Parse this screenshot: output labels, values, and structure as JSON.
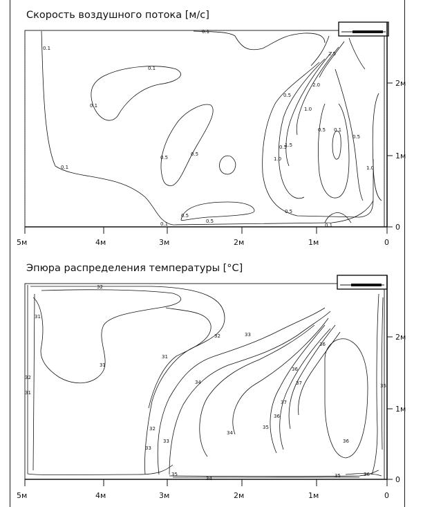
{
  "panels": [
    {
      "title": "Скорость воздушного потока [м/с]",
      "x_ticks": [
        "5м",
        "4м",
        "3м",
        "2м",
        "1м",
        "0"
      ],
      "y_ticks": [
        "2м",
        "1м",
        "0"
      ],
      "contour_labels": [
        "0.1",
        "0.1",
        "0.1",
        "0.1",
        "0.1",
        "0.1",
        "0.1",
        "0.5",
        "0.5",
        "0.5",
        "0.5",
        "0.5",
        "0.5",
        "0.5",
        "1.0",
        "1.0",
        "1.5",
        "2.0",
        "2.5",
        "1.0",
        "0.5",
        "0.1",
        "0.5"
      ]
    },
    {
      "title": "Эпюра распределения температуры [°C]",
      "x_ticks": [
        "5м",
        "4м",
        "3м",
        "2м",
        "1м",
        "0"
      ],
      "y_ticks": [
        "2м",
        "1м",
        "0"
      ],
      "contour_labels": [
        "32",
        "31",
        "32",
        "31",
        "31",
        "31",
        "32",
        "33",
        "34",
        "33",
        "32",
        "33",
        "34",
        "35",
        "36",
        "37",
        "36",
        "36",
        "35",
        "35",
        "36",
        "34",
        "36",
        "37",
        "35"
      ]
    }
  ]
}
